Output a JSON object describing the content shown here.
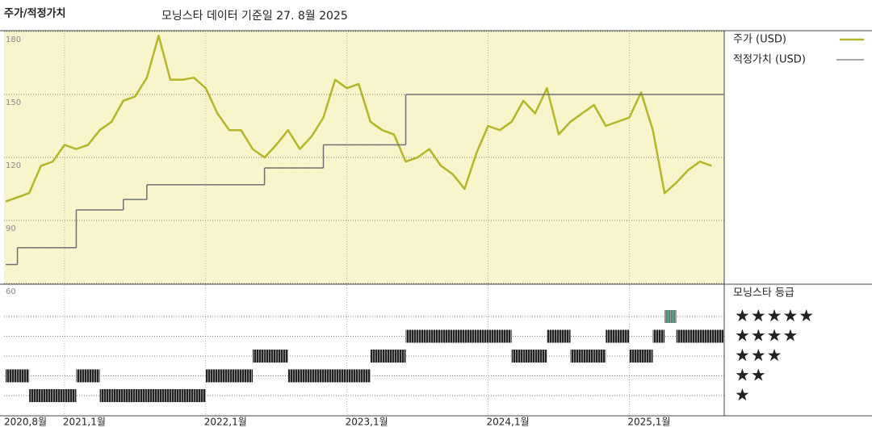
{
  "chart_data": [
    {
      "type": "line",
      "title": "주가/적정가치",
      "subtitle": "모닝스타 데이터 기준일 27. 8월 2025",
      "x": [
        "2020-08",
        "2020-09",
        "2020-10",
        "2020-11",
        "2020-12",
        "2021-01",
        "2021-02",
        "2021-03",
        "2021-04",
        "2021-05",
        "2021-06",
        "2021-07",
        "2021-08",
        "2021-09",
        "2021-10",
        "2021-11",
        "2021-12",
        "2022-01",
        "2022-02",
        "2022-03",
        "2022-04",
        "2022-05",
        "2022-06",
        "2022-07",
        "2022-08",
        "2022-09",
        "2022-10",
        "2022-11",
        "2022-12",
        "2023-01",
        "2023-02",
        "2023-03",
        "2023-04",
        "2023-05",
        "2023-06",
        "2023-07",
        "2023-08",
        "2023-09",
        "2023-10",
        "2023-11",
        "2023-12",
        "2024-01",
        "2024-02",
        "2024-03",
        "2024-04",
        "2024-05",
        "2024-06",
        "2024-07",
        "2024-08",
        "2024-09",
        "2024-10",
        "2024-11",
        "2024-12",
        "2025-01",
        "2025-02",
        "2025-03",
        "2025-04",
        "2025-05",
        "2025-06",
        "2025-07",
        "2025-08"
      ],
      "series": [
        {
          "name": "주가 (USD)",
          "color": "#b5b52a",
          "values": [
            99,
            101,
            103,
            116,
            118,
            126,
            124,
            126,
            133,
            137,
            147,
            149,
            158,
            178,
            157,
            157,
            158,
            153,
            141,
            133,
            133,
            124,
            120,
            126,
            133,
            124,
            130,
            139,
            157,
            153,
            155,
            137,
            133,
            131,
            118,
            120,
            124,
            116,
            112,
            105,
            122,
            135,
            133,
            137,
            147,
            141,
            153,
            131,
            137,
            141,
            145,
            135,
            137,
            139,
            151,
            133,
            103,
            108,
            114,
            118,
            116
          ]
        },
        {
          "name": "적정가치 (USD)",
          "color": "#707070",
          "step": true,
          "values": [
            69,
            77,
            77,
            77,
            77,
            77,
            95,
            95,
            95,
            95,
            100,
            100,
            107,
            107,
            107,
            107,
            107,
            107,
            107,
            107,
            107,
            107,
            115,
            115,
            115,
            115,
            115,
            126,
            126,
            126,
            126,
            126,
            126,
            126,
            150,
            150,
            150,
            150,
            150,
            150,
            150,
            150,
            150,
            150,
            150,
            150,
            150,
            150,
            150,
            150,
            150,
            150,
            150,
            150,
            150,
            150,
            150,
            150,
            150,
            150,
            150
          ]
        }
      ],
      "xlim": [
        "2020-08",
        "2025-09"
      ],
      "xticks": [
        {
          "value": "2020-08",
          "label": "2020,8월"
        },
        {
          "value": "2021-01",
          "label": "2021,1월"
        },
        {
          "value": "2022-01",
          "label": "2022,1월"
        },
        {
          "value": "2023-01",
          "label": "2023,1월"
        },
        {
          "value": "2024-01",
          "label": "2024,1월"
        },
        {
          "value": "2025-01",
          "label": "2025,1월"
        }
      ],
      "ylim": [
        60,
        180
      ],
      "yticks": [
        60,
        90,
        120,
        150,
        180
      ],
      "grid": true
    },
    {
      "type": "rating",
      "title": "모닝스타 등급",
      "x": [
        "2020-08",
        "2020-09",
        "2020-10",
        "2020-11",
        "2020-12",
        "2021-01",
        "2021-02",
        "2021-03",
        "2021-04",
        "2021-05",
        "2021-06",
        "2021-07",
        "2021-08",
        "2021-09",
        "2021-10",
        "2021-11",
        "2021-12",
        "2022-01",
        "2022-02",
        "2022-03",
        "2022-04",
        "2022-05",
        "2022-06",
        "2022-07",
        "2022-08",
        "2022-09",
        "2022-10",
        "2022-11",
        "2022-12",
        "2023-01",
        "2023-02",
        "2023-03",
        "2023-04",
        "2023-05",
        "2023-06",
        "2023-07",
        "2023-08",
        "2023-09",
        "2023-10",
        "2023-11",
        "2023-12",
        "2024-01",
        "2024-02",
        "2024-03",
        "2024-04",
        "2024-05",
        "2024-06",
        "2024-07",
        "2024-08",
        "2024-09",
        "2024-10",
        "2024-11",
        "2024-12",
        "2025-01",
        "2025-02",
        "2025-03",
        "2025-04",
        "2025-05",
        "2025-06",
        "2025-07",
        "2025-08"
      ],
      "values": [
        2,
        2,
        1,
        1,
        1,
        1,
        2,
        2,
        1,
        1,
        1,
        1,
        1,
        1,
        1,
        1,
        1,
        2,
        2,
        2,
        2,
        3,
        3,
        3,
        2,
        2,
        2,
        2,
        2,
        2,
        2,
        3,
        3,
        3,
        4,
        4,
        4,
        4,
        4,
        4,
        4,
        4,
        4,
        3,
        3,
        3,
        4,
        4,
        3,
        3,
        3,
        4,
        4,
        3,
        3,
        4,
        5,
        4,
        4,
        4,
        4
      ],
      "levels": [
        {
          "value": 5,
          "label": "★★★★★"
        },
        {
          "value": 4,
          "label": "★★★★"
        },
        {
          "value": 3,
          "label": "★★★"
        },
        {
          "value": 2,
          "label": "★★"
        },
        {
          "value": 1,
          "label": "★"
        }
      ],
      "colors": {
        "default": "#222222",
        "top": "#4e8a78"
      }
    }
  ]
}
